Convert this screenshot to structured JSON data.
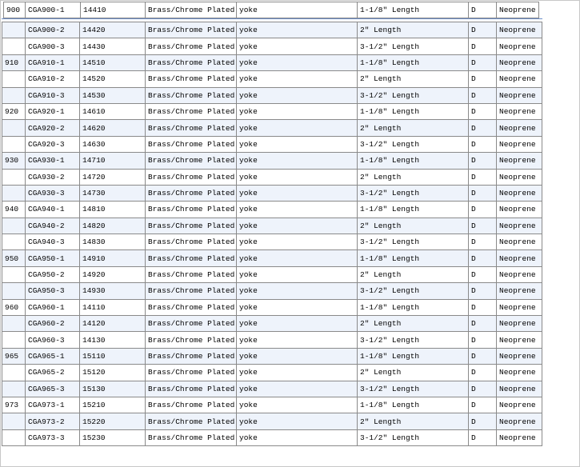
{
  "top_row": [
    "900",
    "CGA900-1",
    "14410",
    "Brass/Chrome Plated",
    "yoke",
    "1-1/8″ Length",
    "D",
    "Neoprene"
  ],
  "groups": [
    {
      "rows": [
        [
          "CGA900-2",
          "14420",
          "Brass/Chrome Plated",
          "yoke",
          "2″ Length",
          "D",
          "Neoprene"
        ],
        [
          "CGA900-3",
          "14430",
          "Brass/Chrome Plated",
          "yoke",
          "3-1/2″ Length",
          "D",
          "Neoprene"
        ]
      ]
    },
    {
      "code": "910",
      "rows": [
        [
          "CGA910-1",
          "14510",
          "Brass/Chrome Plated",
          "yoke",
          "1-1/8″ Length",
          "D",
          "Neoprene"
        ],
        [
          "CGA910-2",
          "14520",
          "Brass/Chrome Plated",
          "yoke",
          "2″ Length",
          "D",
          "Neoprene"
        ],
        [
          "CGA910-3",
          "14530",
          "Brass/Chrome Plated",
          "yoke",
          "3-1/2″ Length",
          "D",
          "Neoprene"
        ]
      ]
    },
    {
      "code": "920",
      "rows": [
        [
          "CGA920-1",
          "14610",
          "Brass/Chrome Plated",
          "yoke",
          "1-1/8″ Length",
          "D",
          "Neoprene"
        ],
        [
          "CGA920-2",
          "14620",
          "Brass/Chrome Plated",
          "yoke",
          "2″ Length",
          "D",
          "Neoprene"
        ],
        [
          "CGA920-3",
          "14630",
          "Brass/Chrome Plated",
          "yoke",
          "3-1/2″ Length",
          "D",
          "Neoprene"
        ]
      ]
    },
    {
      "code": "930",
      "rows": [
        [
          "CGA930-1",
          "14710",
          "Brass/Chrome Plated",
          "yoke",
          "1-1/8″ Length",
          "D",
          "Neoprene"
        ],
        [
          "CGA930-2",
          "14720",
          "Brass/Chrome Plated",
          "yoke",
          "2″ Length",
          "D",
          "Neoprene"
        ],
        [
          "CGA930-3",
          "14730",
          "Brass/Chrome Plated",
          "yoke",
          "3-1/2″ Length",
          "D",
          "Neoprene"
        ]
      ]
    },
    {
      "code": "940",
      "rows": [
        [
          "CGA940-1",
          "14810",
          "Brass/Chrome Plated",
          "yoke",
          "1-1/8″ Length",
          "D",
          "Neoprene"
        ],
        [
          "CGA940-2",
          "14820",
          "Brass/Chrome Plated",
          "yoke",
          "2″ Length",
          "D",
          "Neoprene"
        ],
        [
          "CGA940-3",
          "14830",
          "Brass/Chrome Plated",
          "yoke",
          "3-1/2″ Length",
          "D",
          "Neoprene"
        ]
      ]
    },
    {
      "code": "950",
      "rows": [
        [
          "CGA950-1",
          "14910",
          "Brass/Chrome Plated",
          "yoke",
          "1-1/8″ Length",
          "D",
          "Neoprene"
        ],
        [
          "CGA950-2",
          "14920",
          "Brass/Chrome Plated",
          "yoke",
          "2″ Length",
          "D",
          "Neoprene"
        ],
        [
          "CGA950-3",
          "14930",
          "Brass/Chrome Plated",
          "yoke",
          "3-1/2″ Length",
          "D",
          "Neoprene"
        ]
      ]
    },
    {
      "code": "960",
      "rows": [
        [
          "CGA960-1",
          "14110",
          "Brass/Chrome Plated",
          "yoke",
          "1-1/8″ Length",
          "D",
          "Neoprene"
        ],
        [
          "CGA960-2",
          "14120",
          "Brass/Chrome Plated",
          "yoke",
          "2″ Length",
          "D",
          "Neoprene"
        ],
        [
          "CGA960-3",
          "14130",
          "Brass/Chrome Plated",
          "yoke",
          "3-1/2″ Length",
          "D",
          "Neoprene"
        ]
      ]
    },
    {
      "code": "965",
      "rows": [
        [
          "CGA965-1",
          "15110",
          "Brass/Chrome Plated",
          "yoke",
          "1-1/8″ Length",
          "D",
          "Neoprene"
        ],
        [
          "CGA965-2",
          "15120",
          "Brass/Chrome Plated",
          "yoke",
          "2″ Length",
          "D",
          "Neoprene"
        ],
        [
          "CGA965-3",
          "15130",
          "Brass/Chrome Plated",
          "yoke",
          "3-1/2″ Length",
          "D",
          "Neoprene"
        ]
      ]
    },
    {
      "code": "973",
      "rows": [
        [
          "CGA973-1",
          "15210",
          "Brass/Chrome Plated",
          "yoke",
          "1-1/8″ Length",
          "D",
          "Neoprene"
        ],
        [
          "CGA973-2",
          "15220",
          "Brass/Chrome Plated",
          "yoke",
          "2″ Length",
          "D",
          "Neoprene"
        ],
        [
          "CGA973-3",
          "15230",
          "Brass/Chrome Plated",
          "yoke",
          "3-1/2″ Length",
          "D",
          "Neoprene"
        ]
      ]
    }
  ]
}
